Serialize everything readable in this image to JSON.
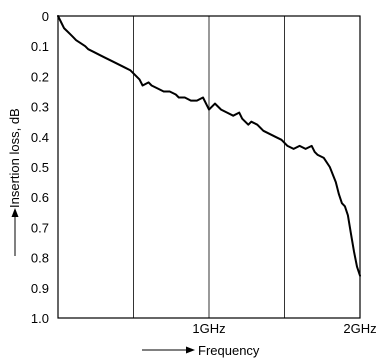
{
  "chart_data": {
    "type": "line",
    "title": "",
    "xlabel": "Frequency",
    "ylabel": "Insertion loss, dB",
    "x_unit": "GHz",
    "xlim": [
      0,
      2
    ],
    "ylim": [
      0,
      1.0
    ],
    "y_inverted": true,
    "grid": true,
    "x_tick_values": [
      0.5,
      1.0,
      1.5,
      2.0
    ],
    "x_tick_labels": [
      "",
      "1GHz",
      "",
      "2GHz"
    ],
    "y_tick_values": [
      0,
      0.1,
      0.2,
      0.3,
      0.4,
      0.5,
      0.6,
      0.7,
      0.8,
      0.9,
      1.0
    ],
    "y_tick_labels": [
      "0",
      "0.1",
      "0.2",
      "0.3",
      "0.4",
      "0.5",
      "0.6",
      "0.7",
      "0.8",
      "0.9",
      "1.0"
    ],
    "series": [
      {
        "line_color": "#000000",
        "x": [
          0,
          0.02,
          0.04,
          0.06,
          0.08,
          0.1,
          0.12,
          0.15,
          0.18,
          0.2,
          0.24,
          0.28,
          0.32,
          0.36,
          0.4,
          0.44,
          0.48,
          0.5,
          0.54,
          0.56,
          0.6,
          0.62,
          0.66,
          0.7,
          0.74,
          0.78,
          0.8,
          0.84,
          0.88,
          0.92,
          0.96,
          1.0,
          1.02,
          1.04,
          1.08,
          1.12,
          1.16,
          1.2,
          1.22,
          1.26,
          1.28,
          1.32,
          1.36,
          1.4,
          1.44,
          1.48,
          1.52,
          1.56,
          1.6,
          1.64,
          1.68,
          1.7,
          1.72,
          1.76,
          1.8,
          1.84,
          1.86,
          1.88,
          1.9,
          1.92,
          1.94,
          1.96,
          1.98,
          2.0
        ],
        "y": [
          0,
          0.02,
          0.04,
          0.05,
          0.06,
          0.07,
          0.08,
          0.09,
          0.1,
          0.11,
          0.12,
          0.13,
          0.14,
          0.15,
          0.16,
          0.17,
          0.18,
          0.19,
          0.21,
          0.23,
          0.22,
          0.23,
          0.24,
          0.25,
          0.25,
          0.26,
          0.27,
          0.27,
          0.28,
          0.28,
          0.27,
          0.31,
          0.3,
          0.29,
          0.31,
          0.32,
          0.33,
          0.32,
          0.34,
          0.36,
          0.35,
          0.36,
          0.38,
          0.39,
          0.4,
          0.41,
          0.43,
          0.44,
          0.43,
          0.44,
          0.43,
          0.45,
          0.46,
          0.47,
          0.5,
          0.55,
          0.59,
          0.62,
          0.63,
          0.66,
          0.72,
          0.78,
          0.83,
          0.86
        ]
      }
    ]
  }
}
